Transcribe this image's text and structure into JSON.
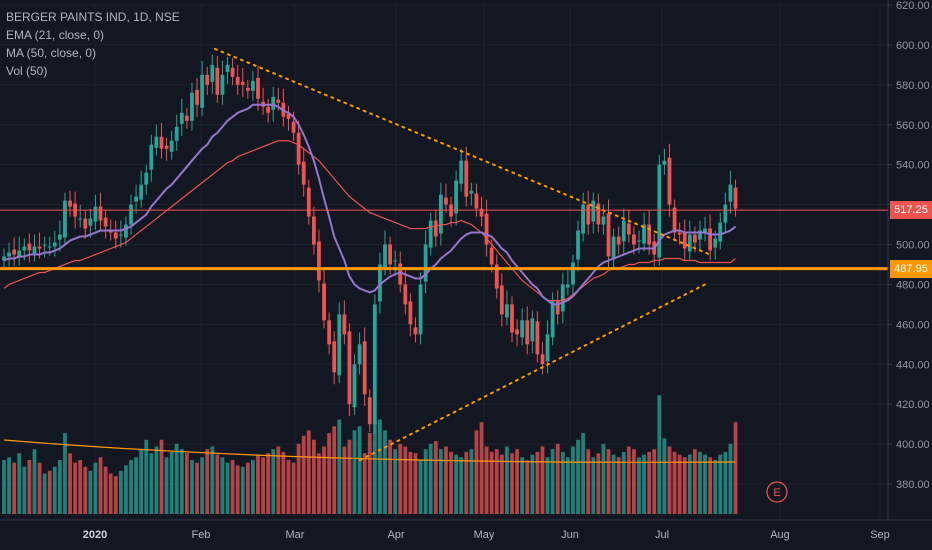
{
  "legend": {
    "symbol": "BERGER PAINTS IND, 1D, NSE",
    "ema": "EMA (21, close, 0)",
    "ma": "MA (50, close, 0)",
    "vol": "Vol (50)"
  },
  "earnings_marker": "E",
  "colors": {
    "background": "#131722",
    "up": "#26a69a",
    "down": "#ef5350",
    "ema": "#9575cd",
    "ma": "#ef5350",
    "vol_ma": "#ff9800",
    "support": "#ff9800",
    "last_price": "#ef5350",
    "trendline": "#ff9800"
  },
  "chart_data": {
    "type": "candlestick",
    "y_axis": {
      "range": [
        365,
        620
      ],
      "ticks": [
        "620.00",
        "600.00",
        "580.00",
        "560.00",
        "540.00",
        "520.00",
        "500.00",
        "480.00",
        "460.00",
        "440.00",
        "420.00",
        "400.00",
        "380.00"
      ]
    },
    "x_axis": {
      "ticks": [
        {
          "label": "2020",
          "bold": true
        },
        {
          "label": "Feb",
          "bold": false
        },
        {
          "label": "Mar",
          "bold": false
        },
        {
          "label": "Apr",
          "bold": false
        },
        {
          "label": "May",
          "bold": false
        },
        {
          "label": "Jun",
          "bold": false
        },
        {
          "label": "Jul",
          "bold": false
        },
        {
          "label": "Aug",
          "bold": false
        },
        {
          "label": "Sep",
          "bold": false
        }
      ]
    },
    "last_price": {
      "value": 517.25,
      "label": "517.25"
    },
    "support_level": {
      "value": 487.95,
      "label": "487.95"
    },
    "close_series": [
      494,
      496,
      495,
      497,
      499,
      497,
      499,
      498,
      500,
      499,
      501,
      505,
      522,
      519,
      514,
      513,
      508,
      513,
      519,
      512,
      509,
      506,
      503,
      505,
      510,
      520,
      524,
      530,
      536,
      550,
      554,
      548,
      548,
      552,
      559,
      566,
      562,
      576,
      570,
      585,
      580,
      590,
      575,
      585,
      590,
      584,
      580,
      580,
      577,
      582,
      573,
      569,
      566,
      574,
      571,
      564,
      563,
      556,
      540,
      530,
      514,
      500,
      482,
      462,
      450,
      436,
      465,
      455,
      420,
      440,
      450,
      425,
      410,
      470,
      490,
      500,
      490,
      492,
      480,
      470,
      460,
      455,
      480,
      500,
      512,
      504,
      525,
      520,
      514,
      532,
      542,
      524,
      527,
      518,
      514,
      500,
      490,
      478,
      465,
      470,
      456,
      455,
      462,
      450,
      463,
      445,
      440,
      455,
      472,
      465,
      480,
      480,
      491,
      507,
      520,
      510,
      522,
      510,
      514,
      494,
      504,
      500,
      512,
      505,
      500,
      502,
      510,
      500,
      495,
      540,
      542,
      520,
      506,
      505,
      498,
      505,
      501,
      507,
      508,
      497,
      503,
      511,
      520,
      530,
      518
    ],
    "ema21_series": [
      492,
      493,
      493,
      494,
      494,
      495,
      495,
      495,
      496,
      496,
      497,
      498,
      500,
      502,
      503,
      504,
      504,
      505,
      506,
      507,
      507,
      507,
      507,
      507,
      508,
      509,
      511,
      513,
      515,
      519,
      522,
      525,
      528,
      530,
      533,
      536,
      539,
      542,
      545,
      548,
      550,
      554,
      556,
      559,
      562,
      564,
      566,
      567,
      568,
      570,
      570,
      570,
      570,
      570,
      569,
      567,
      566,
      564,
      560,
      555,
      549,
      542,
      533,
      523,
      514,
      504,
      498,
      492,
      484,
      480,
      478,
      477,
      476,
      477,
      480,
      482,
      484,
      485,
      486,
      485,
      484,
      483,
      483,
      485,
      488,
      490,
      493,
      495,
      497,
      500,
      503,
      505,
      506,
      506,
      506,
      505,
      504,
      501,
      498,
      496,
      492,
      489,
      486,
      483,
      480,
      478,
      474,
      472,
      470,
      470,
      471,
      472,
      474,
      477,
      480,
      483,
      486,
      489,
      491,
      492,
      493,
      494,
      495,
      496,
      497,
      498,
      498,
      498,
      498,
      502,
      505,
      506,
      507,
      507,
      506,
      506,
      506,
      506,
      506,
      505,
      505,
      505,
      506,
      507,
      509
    ],
    "ma50_series": [
      478,
      480,
      481,
      482,
      483,
      484,
      485,
      486,
      486,
      487,
      488,
      489,
      490,
      491,
      492,
      492,
      493,
      494,
      495,
      496,
      497,
      498,
      499,
      500,
      501,
      503,
      505,
      507,
      509,
      511,
      513,
      515,
      517,
      519,
      521,
      523,
      525,
      527,
      529,
      531,
      533,
      535,
      537,
      539,
      541,
      542,
      544,
      545,
      546,
      547,
      548,
      549,
      550,
      551,
      552,
      552,
      552,
      551,
      550,
      548,
      546,
      544,
      542,
      539,
      536,
      533,
      530,
      527,
      524,
      522,
      520,
      518,
      516,
      515,
      514,
      513,
      512,
      511,
      510,
      509,
      508,
      508,
      508,
      508,
      509,
      509,
      510,
      510,
      511,
      511,
      512,
      511,
      510,
      508,
      506,
      503,
      500,
      497,
      494,
      491,
      488,
      485,
      482,
      480,
      478,
      476,
      474,
      472,
      472,
      472,
      472,
      473,
      475,
      477,
      479,
      481,
      483,
      484,
      485,
      487,
      488,
      488,
      489,
      490,
      490,
      491,
      491,
      491,
      492,
      492,
      493,
      493,
      493,
      493,
      492,
      492,
      492,
      491,
      491,
      491,
      491,
      491,
      491,
      491,
      493
    ],
    "volume_series": [
      40,
      42,
      38,
      45,
      35,
      40,
      48,
      38,
      30,
      32,
      35,
      40,
      60,
      45,
      38,
      40,
      35,
      32,
      38,
      42,
      35,
      30,
      28,
      32,
      36,
      40,
      42,
      48,
      55,
      45,
      50,
      55,
      42,
      46,
      52,
      48,
      45,
      40,
      38,
      42,
      48,
      50,
      44,
      42,
      38,
      40,
      36,
      35,
      38,
      40,
      44,
      42,
      45,
      48,
      50,
      46,
      40,
      38,
      52,
      58,
      62,
      55,
      45,
      50,
      60,
      65,
      70,
      50,
      55,
      62,
      65,
      45,
      60,
      68,
      70,
      62,
      55,
      48,
      52,
      50,
      46,
      45,
      40,
      48,
      52,
      54,
      48,
      50,
      46,
      44,
      42,
      46,
      48,
      62,
      68,
      50,
      46,
      48,
      44,
      50,
      45,
      48,
      42,
      40,
      44,
      46,
      50,
      42,
      48,
      52,
      46,
      42,
      50,
      55,
      60,
      48,
      42,
      45,
      52,
      48,
      44,
      42,
      46,
      50,
      48,
      42,
      44,
      46,
      48,
      88,
      56,
      50,
      46,
      44,
      42,
      44,
      48,
      46,
      44,
      42,
      40,
      44,
      46,
      52,
      68
    ],
    "volume_ma": 40
  }
}
